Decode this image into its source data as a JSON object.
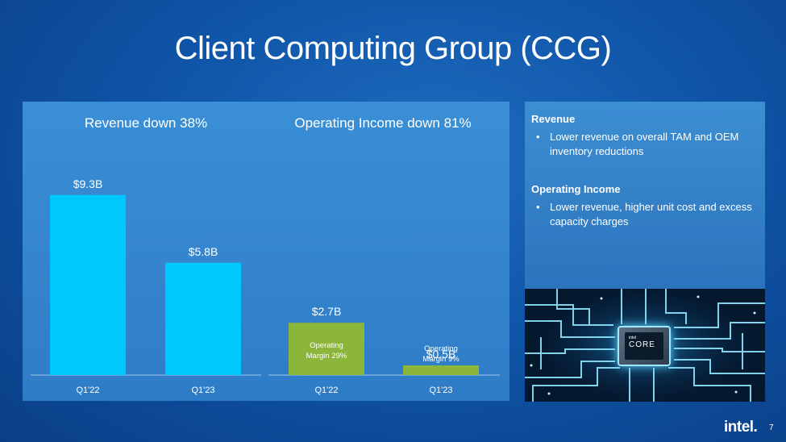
{
  "slide": {
    "title": "Client Computing Group (CCG)",
    "page_number": "7",
    "logo_text": "intel."
  },
  "chart_data": [
    {
      "type": "bar",
      "title": "Revenue down 38%",
      "categories": [
        "Q1'22",
        "Q1'23"
      ],
      "values": [
        9.3,
        5.8
      ],
      "value_labels": [
        "$9.3B",
        "$5.8B"
      ],
      "bar_labels": [
        "",
        ""
      ],
      "unit": "$B",
      "color": "#00c7fd"
    },
    {
      "type": "bar",
      "title": "Operating Income down 81%",
      "categories": [
        "Q1'22",
        "Q1'23"
      ],
      "values": [
        2.7,
        0.5
      ],
      "value_labels": [
        "$2.7B",
        "$0.5B"
      ],
      "bar_labels": [
        "Operating Margin 29%",
        "Operating Margin 9%"
      ],
      "unit": "$B",
      "color": "#8bb53b"
    }
  ],
  "side": {
    "revenue_heading": "Revenue",
    "revenue_bullets": [
      "Lower revenue on overall TAM and OEM inventory reductions"
    ],
    "opinc_heading": "Operating Income",
    "opinc_bullets": [
      "Lower revenue, higher unit cost and excess capacity charges"
    ]
  },
  "image": {
    "chip_brand": "intel",
    "chip_text": "CORE"
  },
  "colors": {
    "background": "#0f55a8",
    "panel": "#3a8fd6",
    "revenue_bar": "#00c7fd",
    "opinc_bar": "#8bb53b"
  }
}
